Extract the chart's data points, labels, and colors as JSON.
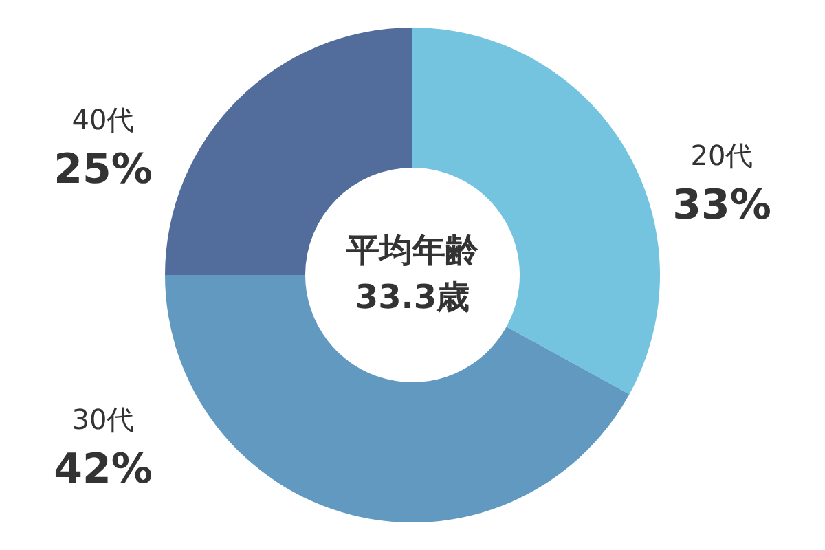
{
  "chart_data": {
    "type": "donut",
    "categories": [
      "20代",
      "30代",
      "40代"
    ],
    "values": [
      33,
      42,
      25
    ],
    "colors": [
      "#74c4df",
      "#6199c0",
      "#526c9c"
    ],
    "value_labels": [
      "33%",
      "42%",
      "25%"
    ],
    "annotations": [
      "平均年齢",
      "33.3歳"
    ]
  }
}
